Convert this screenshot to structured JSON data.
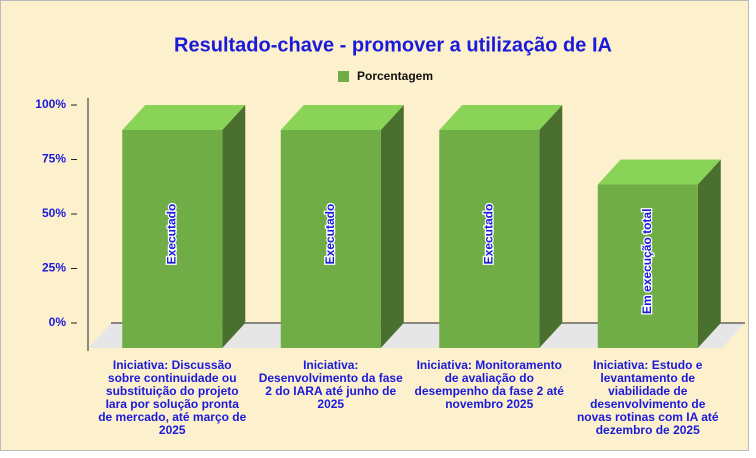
{
  "chart_data": {
    "type": "bar3d",
    "title": "Resultado-chave - promover a utilização de IA",
    "categories": [
      "Iniciativa: Discussão sobre continuidade ou substituição do projeto Iara por solução pronta de mercado, até março de 2025",
      "Iniciativa: Desenvolvimento da fase 2 do IARA até junho de 2025",
      "Iniciativa: Monitoramento de avaliação do desempenho da fase 2 até novembro 2025",
      "Iniciativa: Estudo e levantamento de viabilidade de desenvolvimento de novas rotinas com IA até dezembro de 2025"
    ],
    "series": [
      {
        "name": "Porcentagem",
        "color": "#70ad47",
        "values": [
          100,
          100,
          100,
          75
        ],
        "annotations": [
          "Executado",
          "Executado",
          "Executado",
          "Em execução total"
        ]
      }
    ],
    "ylim": [
      0,
      100
    ],
    "yticks": [
      {
        "value": 0,
        "label": "0%"
      },
      {
        "value": 25,
        "label": "25%"
      },
      {
        "value": 50,
        "label": "50%"
      },
      {
        "value": 75,
        "label": "75%"
      },
      {
        "value": 100,
        "label": "100%"
      }
    ]
  }
}
